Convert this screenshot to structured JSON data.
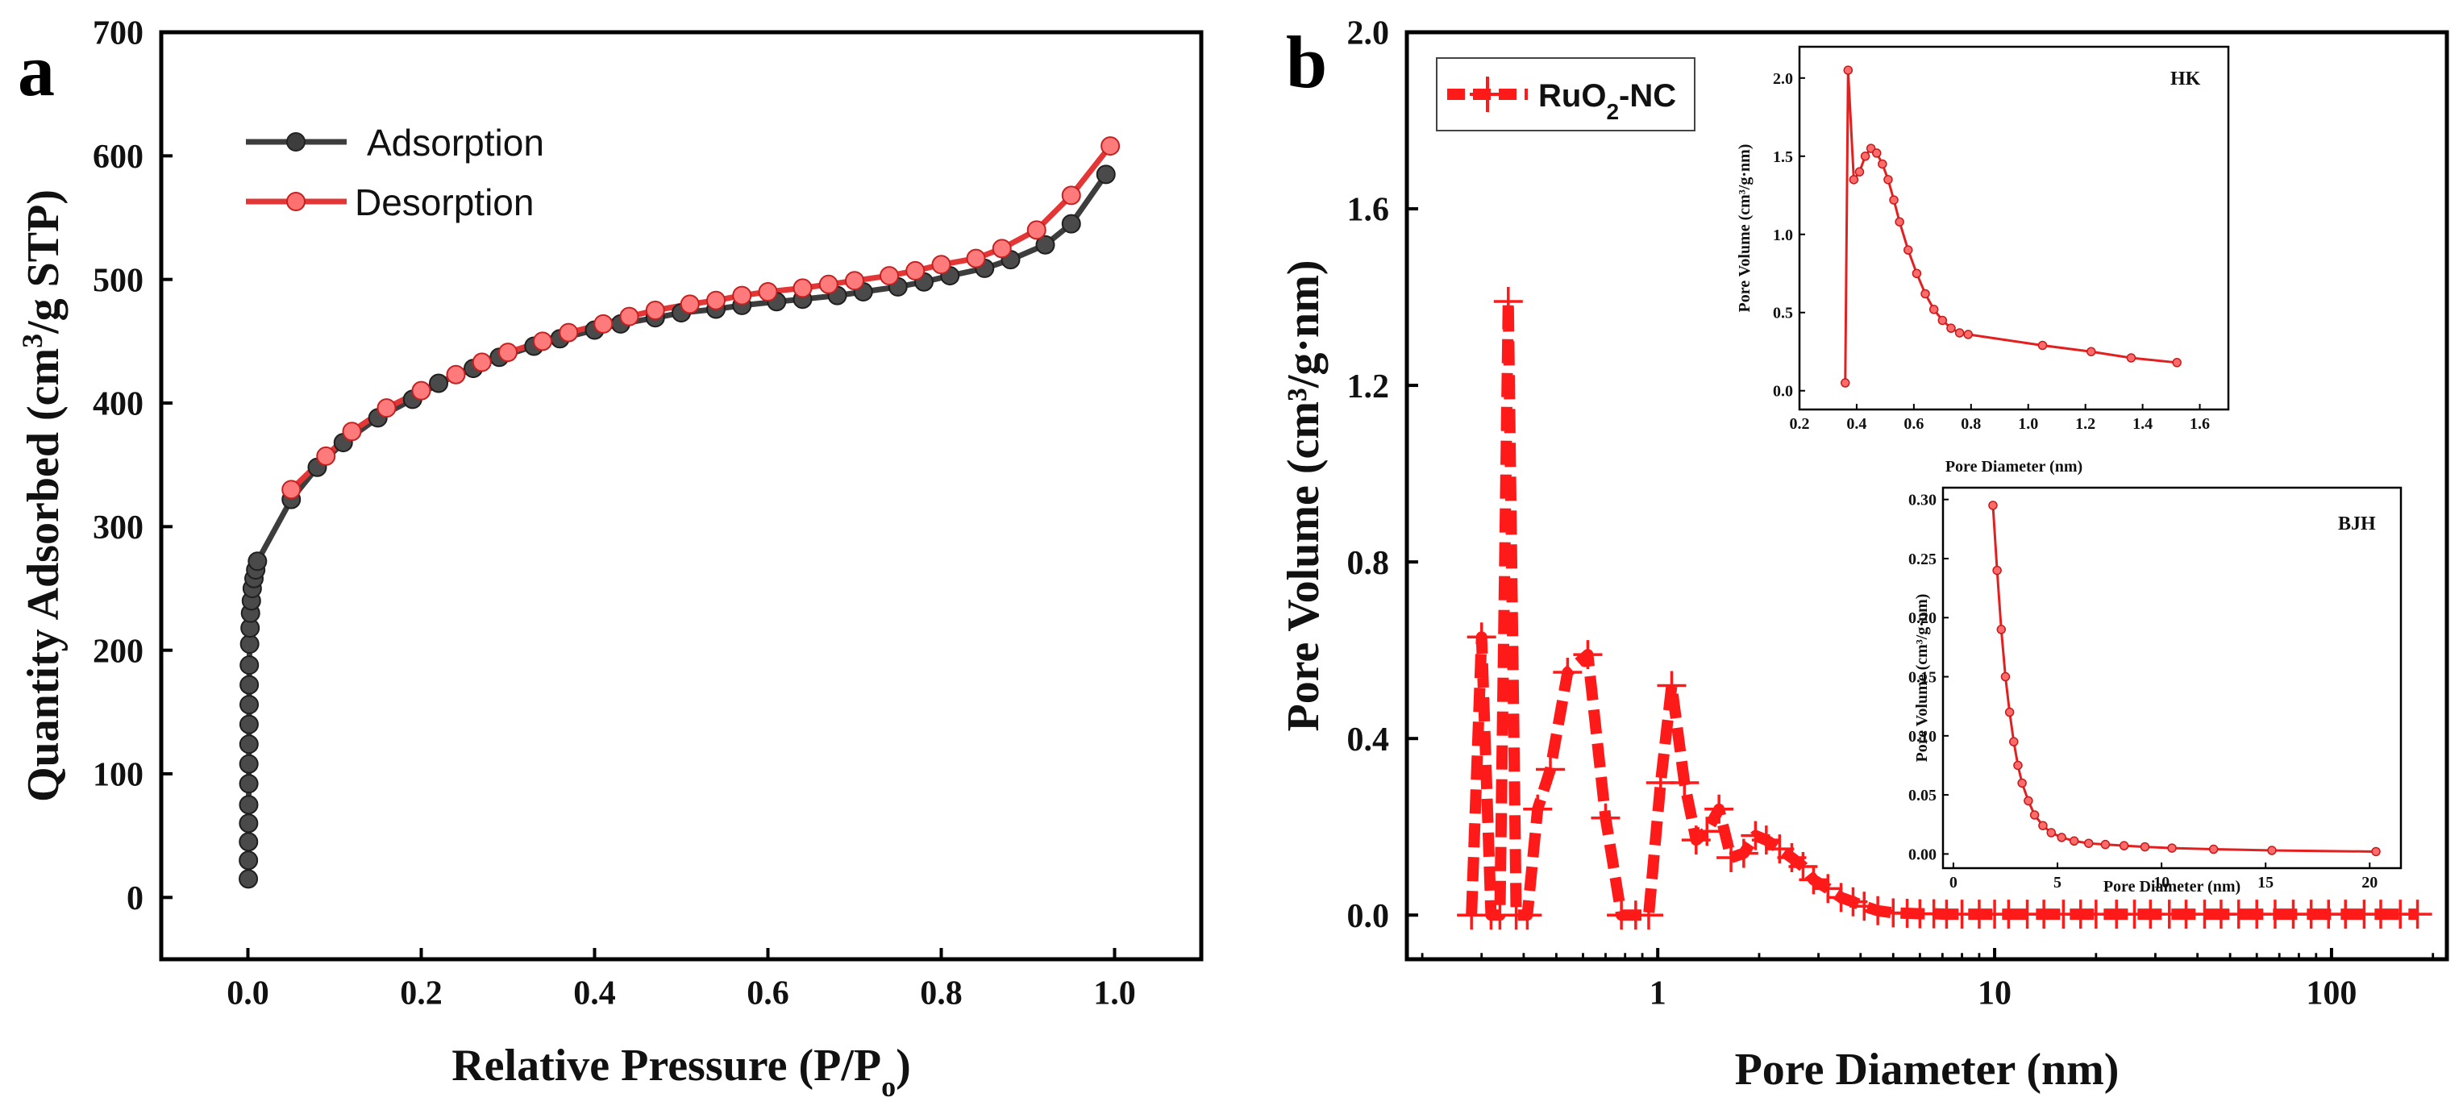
{
  "panels": {
    "a": {
      "letter": "a",
      "chart_data": {
        "type": "line",
        "xlabel_main": "Relative Pressure (P/P",
        "xlabel_sub": "o",
        "xlabel_end": ")",
        "ylabel_main": "Quantity Adsorbed (cm",
        "ylabel_sup": "3",
        "ylabel_end": "/g STP)",
        "xlim": [
          -0.1,
          1.1
        ],
        "ylim": [
          -50,
          700
        ],
        "xticks": [
          0.0,
          0.2,
          0.4,
          0.6,
          0.8,
          1.0
        ],
        "xtick_labels": [
          "0.0",
          "0.2",
          "0.4",
          "0.6",
          "0.8",
          "1.0"
        ],
        "yticks": [
          0,
          100,
          200,
          300,
          400,
          500,
          600,
          700
        ],
        "ytick_labels": [
          "0",
          "100",
          "200",
          "300",
          "400",
          "500",
          "600",
          "700"
        ],
        "legend_position": "top-left",
        "series": [
          {
            "name": "Adsorption",
            "color": "#3d3d3d",
            "x": [
              0.0005,
              0.0006,
              0.0007,
              0.0008,
              0.0009,
              0.001,
              0.0011,
              0.0012,
              0.0013,
              0.0014,
              0.0015,
              0.0016,
              0.002,
              0.0025,
              0.003,
              0.004,
              0.005,
              0.007,
              0.009,
              0.011,
              0.05,
              0.08,
              0.11,
              0.15,
              0.19,
              0.22,
              0.26,
              0.29,
              0.33,
              0.36,
              0.4,
              0.43,
              0.47,
              0.5,
              0.54,
              0.57,
              0.61,
              0.64,
              0.68,
              0.71,
              0.75,
              0.78,
              0.81,
              0.85,
              0.88,
              0.92,
              0.95,
              0.99
            ],
            "y": [
              15,
              30,
              45,
              60,
              75,
              92,
              108,
              124,
              140,
              156,
              172,
              188,
              205,
              218,
              230,
              240,
              250,
              258,
              265,
              272,
              322,
              348,
              368,
              388,
              403,
              416,
              428,
              437,
              446,
              452,
              459,
              464,
              469,
              473,
              476,
              479,
              482,
              484,
              487,
              490,
              494,
              498,
              503,
              509,
              516,
              528,
              545,
              585
            ]
          },
          {
            "name": "Desorption",
            "color": "#e33636",
            "x": [
              0.05,
              0.09,
              0.12,
              0.16,
              0.2,
              0.24,
              0.27,
              0.3,
              0.34,
              0.37,
              0.41,
              0.44,
              0.47,
              0.51,
              0.54,
              0.57,
              0.6,
              0.64,
              0.67,
              0.7,
              0.74,
              0.77,
              0.8,
              0.84,
              0.87,
              0.91,
              0.95,
              0.995
            ],
            "y": [
              330,
              357,
              377,
              396,
              410,
              423,
              433,
              441,
              450,
              457,
              464,
              470,
              475,
              480,
              483,
              487,
              490,
              493,
              496,
              499,
              503,
              507,
              512,
              517,
              525,
              540,
              568,
              608
            ]
          }
        ]
      }
    },
    "b": {
      "letter": "b",
      "chart_data": {
        "type": "line",
        "xscale": "log",
        "xlabel": "Pore Diameter (nm)",
        "ylabel": "Pore Volume (cm³/g·nm)",
        "xlim": [
          0.18,
          220
        ],
        "ylim": [
          -0.1,
          2.0
        ],
        "xticks": [
          1,
          10,
          100
        ],
        "xtick_labels": [
          "1",
          "10",
          "100"
        ],
        "yticks": [
          0.0,
          0.4,
          0.8,
          1.2,
          1.6,
          2.0
        ],
        "ytick_labels": [
          "0.0",
          "0.4",
          "0.8",
          "1.2",
          "1.6",
          "2.0"
        ],
        "legend_position": "top-left",
        "legend_label_main": "RuO",
        "legend_label_sub": "2",
        "legend_label_end": "-NC",
        "series": [
          {
            "name": "RuO2-NC",
            "color": "#ff1a1a",
            "x": [
              0.28,
              0.3,
              0.32,
              0.34,
              0.36,
              0.38,
              0.41,
              0.44,
              0.48,
              0.54,
              0.62,
              0.7,
              0.78,
              0.86,
              0.94,
              1.02,
              1.1,
              1.2,
              1.3,
              1.4,
              1.52,
              1.65,
              1.8,
              1.95,
              2.1,
              2.3,
              2.5,
              2.7,
              2.9,
              3.2,
              3.5,
              3.8,
              4.1,
              4.5,
              5.0,
              5.5,
              6.0,
              6.6,
              7.2,
              8.0,
              9.0,
              10,
              11,
              12.5,
              14,
              16,
              18,
              20,
              23,
              26,
              29,
              33,
              37,
              42,
              47,
              53,
              60,
              68,
              77,
              87,
              98,
              110,
              125,
              140,
              160,
              180
            ],
            "y": [
              0.0,
              0.63,
              0.0,
              0.0,
              1.39,
              0.0,
              0.0,
              0.24,
              0.33,
              0.55,
              0.59,
              0.22,
              0.0,
              0.0,
              0.0,
              0.3,
              0.52,
              0.3,
              0.17,
              0.19,
              0.24,
              0.13,
              0.14,
              0.18,
              0.17,
              0.15,
              0.13,
              0.11,
              0.08,
              0.06,
              0.04,
              0.03,
              0.02,
              0.01,
              0.005,
              0.004,
              0.003,
              0.003,
              0.002,
              0.002,
              0.002,
              0.002,
              0.002,
              0.002,
              0.002,
              0.002,
              0.002,
              0.002,
              0.002,
              0.002,
              0.002,
              0.002,
              0.002,
              0.002,
              0.002,
              0.002,
              0.002,
              0.002,
              0.002,
              0.002,
              0.002,
              0.002,
              0.002,
              0.002,
              0.002,
              0.002
            ]
          }
        ]
      },
      "insets": {
        "hk": {
          "tag": "HK",
          "chart_data": {
            "type": "line",
            "xlabel": "Pore Diameter (nm)",
            "ylabel": "Pore Volume (cm³/g·nm)",
            "xlim": [
              0.2,
              1.7
            ],
            "ylim": [
              -0.12,
              2.2
            ],
            "xticks": [
              0.2,
              0.4,
              0.6,
              0.8,
              1.0,
              1.2,
              1.4,
              1.6
            ],
            "xtick_labels": [
              "0.2",
              "0.4",
              "0.6",
              "0.8",
              "1.0",
              "1.2",
              "1.4",
              "1.6"
            ],
            "yticks": [
              0.0,
              0.5,
              1.0,
              1.5,
              2.0
            ],
            "ytick_labels": [
              "0.0",
              "0.5",
              "1.0",
              "1.5",
              "2.0"
            ],
            "series": [
              {
                "name": "HK",
                "color": "#e32020",
                "x": [
                  0.36,
                  0.37,
                  0.39,
                  0.41,
                  0.43,
                  0.45,
                  0.47,
                  0.49,
                  0.51,
                  0.53,
                  0.55,
                  0.58,
                  0.61,
                  0.64,
                  0.67,
                  0.7,
                  0.73,
                  0.76,
                  0.79,
                  1.05,
                  1.22,
                  1.36,
                  1.52
                ],
                "y": [
                  0.05,
                  2.05,
                  1.35,
                  1.4,
                  1.5,
                  1.55,
                  1.52,
                  1.45,
                  1.35,
                  1.22,
                  1.08,
                  0.9,
                  0.75,
                  0.62,
                  0.52,
                  0.45,
                  0.4,
                  0.37,
                  0.36,
                  0.29,
                  0.25,
                  0.21,
                  0.18
                ]
              }
            ]
          }
        },
        "bjh": {
          "tag": "BJH",
          "chart_data": {
            "type": "line",
            "xlabel": "Pore Diameter (nm)",
            "ylabel": "Pore Volume (cm³/g·nm)",
            "xlim": [
              -0.5,
              21.5
            ],
            "ylim": [
              -0.012,
              0.31
            ],
            "xticks": [
              0,
              5,
              10,
              15,
              20
            ],
            "xtick_labels": [
              "0",
              "5",
              "10",
              "15",
              "20"
            ],
            "yticks": [
              0.0,
              0.05,
              0.1,
              0.15,
              0.2,
              0.25,
              0.3
            ],
            "ytick_labels": [
              "0.00",
              "0.05",
              "0.10",
              "0.15",
              "0.20",
              "0.25",
              "0.30"
            ],
            "series": [
              {
                "name": "BJH",
                "color": "#e32020",
                "x": [
                  1.9,
                  2.1,
                  2.3,
                  2.5,
                  2.7,
                  2.9,
                  3.1,
                  3.3,
                  3.6,
                  3.9,
                  4.3,
                  4.7,
                  5.2,
                  5.8,
                  6.5,
                  7.3,
                  8.2,
                  9.2,
                  10.5,
                  12.5,
                  15.3,
                  20.3
                ],
                "y": [
                  0.295,
                  0.24,
                  0.19,
                  0.15,
                  0.12,
                  0.095,
                  0.075,
                  0.06,
                  0.045,
                  0.033,
                  0.024,
                  0.018,
                  0.014,
                  0.011,
                  0.009,
                  0.008,
                  0.007,
                  0.006,
                  0.005,
                  0.004,
                  0.003,
                  0.002
                ]
              }
            ]
          }
        }
      }
    }
  }
}
